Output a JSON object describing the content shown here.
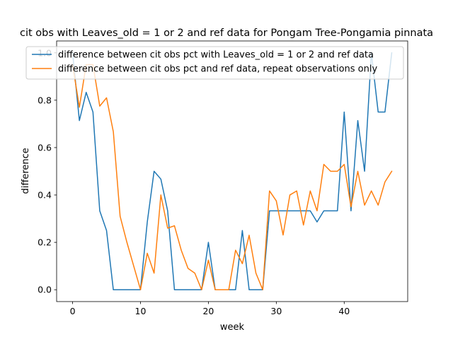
{
  "chart_data": {
    "type": "line",
    "title": "cit obs with Leaves_old = 1 or 2 and ref data for Pongam Tree-Pongamia pinnata",
    "xlabel": "week",
    "ylabel": "difference",
    "xlim": [
      -2.35,
      49.35
    ],
    "ylim": [
      -0.05,
      1.05
    ],
    "xticks": [
      0,
      10,
      20,
      30,
      40
    ],
    "yticks": [
      0.0,
      0.2,
      0.4,
      0.6,
      0.8,
      1.0
    ],
    "xtick_labels": [
      "0",
      "10",
      "20",
      "30",
      "40"
    ],
    "ytick_labels": [
      "0.0",
      "0.2",
      "0.4",
      "0.6",
      "0.8",
      "1.0"
    ],
    "grid": false,
    "legend_position": "upper-right",
    "series": [
      {
        "name": "difference between cit obs pct with Leaves_old = 1 or 2 and ref data",
        "color": "#1f77b4",
        "x": [
          0,
          1,
          2,
          3,
          4,
          5,
          6,
          7,
          8,
          9,
          10,
          11,
          12,
          13,
          14,
          15,
          16,
          17,
          18,
          19,
          20,
          21,
          22,
          23,
          24,
          25,
          26,
          27,
          28,
          29,
          30,
          31,
          32,
          33,
          34,
          35,
          36,
          37,
          38,
          39,
          40,
          41,
          42,
          43,
          44,
          45,
          46,
          47
        ],
        "values": [
          1.0,
          0.714,
          0.833,
          0.75,
          0.333,
          0.25,
          0.0,
          0.0,
          0.0,
          0.0,
          0.0,
          0.286,
          0.5,
          0.467,
          0.333,
          0.0,
          0.0,
          0.0,
          0.0,
          0.0,
          0.2,
          0.0,
          0.0,
          0.0,
          0.0,
          0.25,
          0.0,
          0.0,
          0.0,
          0.333,
          0.333,
          0.333,
          0.333,
          0.333,
          0.333,
          0.333,
          0.286,
          0.333,
          0.333,
          0.333,
          0.75,
          0.333,
          0.714,
          0.5,
          1.0,
          0.75,
          0.75,
          1.0
        ]
      },
      {
        "name": "difference between cit obs pct and ref data, repeat observations only",
        "color": "#ff7f0e",
        "x": [
          0,
          1,
          2,
          3,
          4,
          5,
          6,
          7,
          8,
          9,
          10,
          11,
          12,
          13,
          14,
          15,
          16,
          17,
          18,
          19,
          20,
          21,
          22,
          23,
          24,
          25,
          26,
          27,
          28,
          29,
          30,
          31,
          32,
          33,
          34,
          35,
          36,
          37,
          38,
          39,
          40,
          41,
          42,
          43,
          44,
          45,
          46,
          47
        ],
        "values": [
          0.95,
          0.77,
          0.95,
          0.95,
          0.775,
          0.81,
          0.667,
          0.31,
          0.2,
          0.1,
          0.0,
          0.154,
          0.07,
          0.4,
          0.26,
          0.27,
          0.167,
          0.09,
          0.07,
          0.0,
          0.125,
          0.0,
          0.0,
          0.0,
          0.167,
          0.11,
          0.23,
          0.07,
          0.0,
          0.417,
          0.375,
          0.231,
          0.4,
          0.417,
          0.273,
          0.417,
          0.333,
          0.529,
          0.5,
          0.5,
          0.529,
          0.35,
          0.5,
          0.357,
          0.417,
          0.357,
          0.455,
          0.5
        ]
      }
    ]
  }
}
